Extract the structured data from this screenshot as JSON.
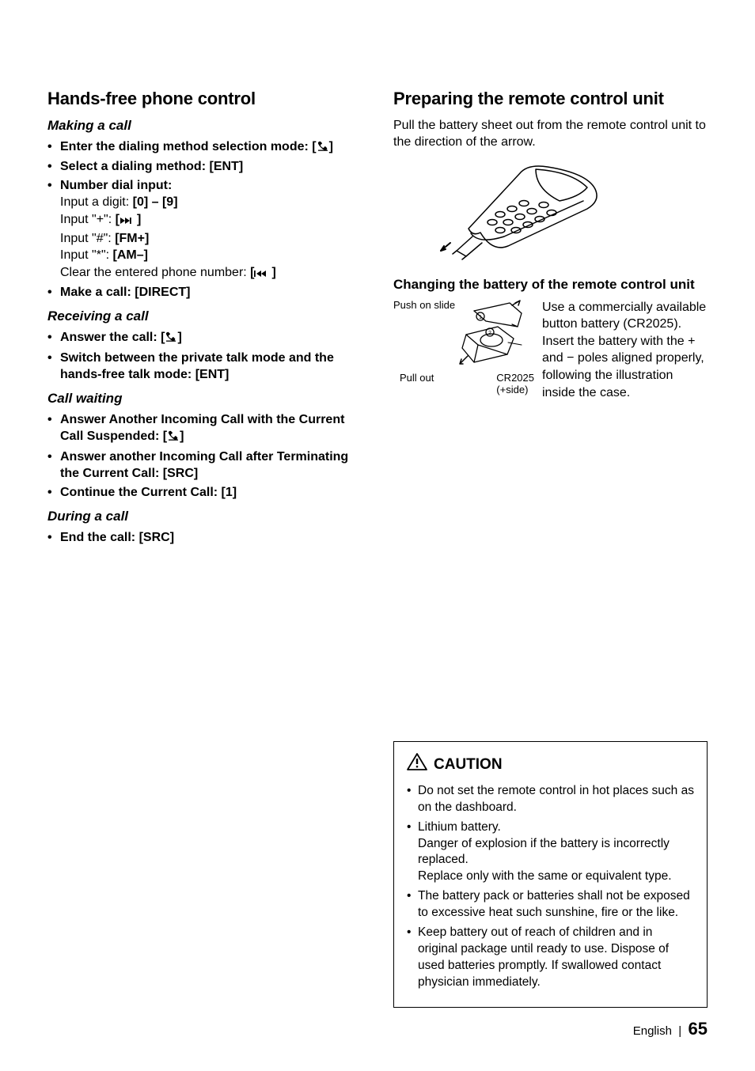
{
  "left": {
    "title": "Hands-free phone control",
    "making": {
      "heading": "Making a call",
      "items": [
        {
          "label_a": "Enter the dialing method selection mode: [",
          "label_b": "]",
          "icon": "phone"
        },
        {
          "label_a": "Select a dialing method: [",
          "key": "ENT",
          "label_b": "]"
        },
        {
          "label_a": "Number dial input:"
        }
      ],
      "numdial": {
        "l1a": "Input a digit: ",
        "l1b": "[0] – [9]",
        "l2a": "Input \"+\": ",
        "l2b": "[",
        "l2c": "]",
        "l2icon": "ffwd-end",
        "l3a": "Input \"#\": ",
        "l3b": "[FM+]",
        "l4a": "Input \"*\": ",
        "l4b": "[AM–]",
        "l5a": "Clear the entered phone number: ",
        "l5b": "[",
        "l5c": "]",
        "l5icon": "rew-start"
      },
      "make": {
        "label_a": "Make a call: [",
        "key": "DIRECT",
        "label_b": "]"
      }
    },
    "receiving": {
      "heading": "Receiving a call",
      "ans": {
        "label_a": "Answer the call: [",
        "label_b": "]",
        "icon": "phone"
      },
      "sw": {
        "label_a": "Switch between the private talk mode and the hands-free talk mode: [",
        "key": "ENT",
        "label_b": "]"
      }
    },
    "waiting": {
      "heading": "Call waiting",
      "a": {
        "label_a": "Answer Another Incoming Call with the Current Call Suspended: [",
        "label_b": "]",
        "icon": "phone"
      },
      "b": {
        "label_a": "Answer another Incoming Call after Terminating the Current Call: [",
        "key": "SRC",
        "label_b": "]"
      },
      "c": {
        "label_a": "Continue the Current Call: [",
        "key": "1",
        "label_b": "]"
      }
    },
    "during": {
      "heading": "During a call",
      "end": {
        "label_a": "End the call: [",
        "key": "SRC",
        "label_b": "]"
      }
    }
  },
  "right": {
    "title": "Preparing the remote control unit",
    "intro": "Pull the battery sheet out from the remote control unit to the direction of the arrow.",
    "subheading": "Changing the battery of the remote control unit",
    "fig": {
      "push": "Push on slide",
      "pull": "Pull out",
      "batt1": "CR2025",
      "batt2": "(+side)"
    },
    "battery_text": "Use a commercially available button battery (CR2025). Insert the battery with the + and − poles aligned properly, following the illustration inside the case.",
    "caution": {
      "title": "CAUTION",
      "items": [
        "Do not set the remote control in hot places such as on the dashboard.",
        "Lithium battery.\nDanger of explosion if the battery is incorrectly replaced.\nReplace only with the same or equivalent type.",
        "The battery pack or batteries shall not be exposed to excessive heat such sunshine, fire or the like.",
        "Keep battery out of reach of children and in original package until ready to use. Dispose of used batteries promptly. If swallowed contact physician immediately."
      ]
    }
  },
  "footer": {
    "lang": "English",
    "sep": "|",
    "page": "65"
  }
}
